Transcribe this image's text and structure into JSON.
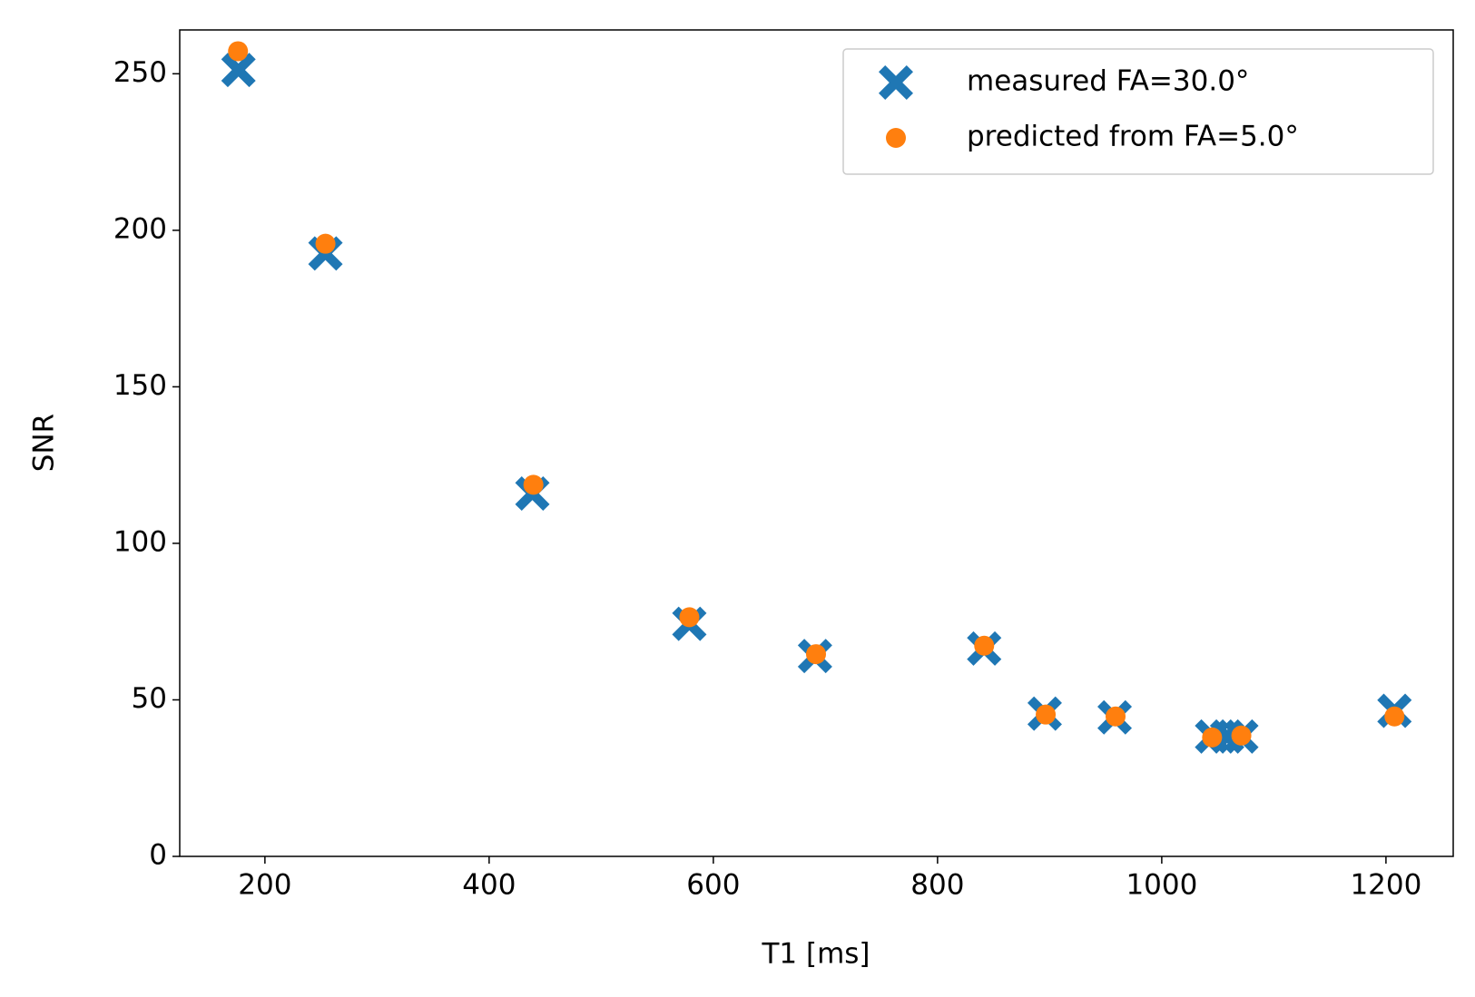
{
  "chart_data": {
    "type": "scatter",
    "xlabel": "T1 [ms]",
    "ylabel": "SNR",
    "xlim": [
      124,
      1260
    ],
    "ylim": [
      0,
      264
    ],
    "xticks": [
      200,
      400,
      600,
      800,
      1000,
      1200
    ],
    "yticks": [
      0,
      50,
      100,
      150,
      200,
      250
    ],
    "legend": "upper right",
    "series": [
      {
        "name": "measured FA=30.0°",
        "color": "#1f77b4",
        "marker": "X",
        "x": [
          176.4,
          254,
          438.6,
          578.6,
          690.7,
          841.6,
          895.6,
          958,
          1044.9,
          1058.3,
          1071,
          1207.6
        ],
        "values": [
          251.2,
          192.6,
          115.9,
          74.3,
          64,
          66.4,
          45.6,
          44.4,
          38.3,
          38.3,
          38.3,
          46.5
        ]
      },
      {
        "name": "predicted from FA=5.0°",
        "color": "#ff7f0e",
        "marker": "o",
        "x": [
          176,
          254,
          439.5,
          578.6,
          691.6,
          841.6,
          896.5,
          958.8,
          1044.9,
          1071,
          1207.6
        ],
        "values": [
          257.2,
          195.7,
          118.7,
          76.4,
          64.6,
          67.3,
          45.3,
          44.7,
          38,
          38.6,
          44.7
        ]
      }
    ]
  }
}
